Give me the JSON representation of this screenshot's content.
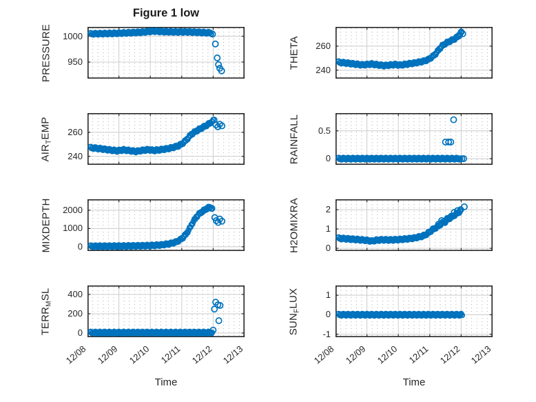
{
  "title": "Figure 1 low",
  "colors": {
    "marker": "#0072BD",
    "axis": "#262626",
    "grid_major": "#cccccc",
    "grid_minor": "#b3b3b3",
    "background": "#ffffff"
  },
  "x_axis": {
    "label": "Time",
    "tick_labels": [
      "12/08",
      "12/09",
      "12/10",
      "12/11",
      "12/12",
      "12/13"
    ],
    "lim_days": [
      0,
      5
    ]
  },
  "chart_data": [
    {
      "type": "scatter",
      "name": "PRESSURE",
      "ylabel_parts": [
        {
          "text": "PRESSURE"
        }
      ],
      "row": 0,
      "col": 0,
      "ylim": [
        918,
        1018
      ],
      "yticks": [
        {
          "v": 950,
          "label": "950"
        },
        {
          "v": 1000,
          "label": "1000"
        }
      ],
      "trend": [
        [
          0.1,
          1004.5
        ],
        [
          0.5,
          1005
        ],
        [
          0.9,
          1005.5
        ],
        [
          1.3,
          1006.5
        ],
        [
          1.7,
          1007.5
        ],
        [
          1.95,
          1009
        ],
        [
          2.15,
          1009.8
        ],
        [
          2.45,
          1008.6
        ],
        [
          2.8,
          1008.2
        ],
        [
          3.2,
          1008.2
        ],
        [
          3.6,
          1007.2
        ],
        [
          3.95,
          1006.2
        ]
      ],
      "points": [
        [
          3.98,
          1004
        ],
        [
          4.07,
          985
        ],
        [
          4.13,
          958
        ],
        [
          4.17,
          945
        ],
        [
          4.21,
          938
        ],
        [
          4.27,
          933
        ]
      ]
    },
    {
      "type": "scatter",
      "name": "THETA",
      "ylabel_parts": [
        {
          "text": "THETA"
        }
      ],
      "row": 0,
      "col": 1,
      "ylim": [
        233,
        276
      ],
      "yticks": [
        {
          "v": 240,
          "label": "240"
        },
        {
          "v": 260,
          "label": "260"
        }
      ],
      "trend": [
        [
          0.1,
          246.6
        ],
        [
          0.35,
          245.9
        ],
        [
          0.6,
          245.1
        ],
        [
          0.85,
          244.4
        ],
        [
          1.0,
          244.7
        ],
        [
          1.15,
          245.1
        ],
        [
          1.35,
          244.4
        ],
        [
          1.55,
          243.8
        ],
        [
          1.75,
          244.3
        ],
        [
          1.9,
          244.7
        ],
        [
          2.05,
          244.2
        ],
        [
          2.3,
          245.1
        ],
        [
          2.55,
          246.1
        ],
        [
          2.8,
          247.4
        ],
        [
          2.95,
          248.8
        ],
        [
          3.1,
          251.5
        ],
        [
          3.2,
          254
        ],
        [
          3.3,
          257.5
        ],
        [
          3.4,
          260.3
        ],
        [
          3.5,
          262.2
        ],
        [
          3.6,
          263.6
        ],
        [
          3.7,
          264.8
        ],
        [
          3.8,
          266.2
        ],
        [
          3.9,
          268
        ],
        [
          4.0,
          270.6
        ]
      ],
      "points": [
        [
          3.93,
          269
        ],
        [
          4.0,
          271.8
        ],
        [
          4.05,
          270.3
        ]
      ]
    },
    {
      "type": "scatter",
      "name": "AIR_TEMP",
      "ylabel_parts": [
        {
          "text": "AIR"
        },
        {
          "text": "T",
          "sub": true
        },
        {
          "text": "EMP"
        }
      ],
      "row": 1,
      "col": 0,
      "ylim": [
        233,
        276
      ],
      "yticks": [
        {
          "v": 240,
          "label": "240"
        },
        {
          "v": 260,
          "label": "260"
        }
      ],
      "trend": [
        [
          0.1,
          247.2
        ],
        [
          0.4,
          246.4
        ],
        [
          0.7,
          245.3
        ],
        [
          0.95,
          244.6
        ],
        [
          1.15,
          245.4
        ],
        [
          1.35,
          244.7
        ],
        [
          1.55,
          244.1
        ],
        [
          1.75,
          245
        ],
        [
          1.95,
          245.6
        ],
        [
          2.1,
          244.9
        ],
        [
          2.3,
          245.4
        ],
        [
          2.5,
          246.2
        ],
        [
          2.7,
          247.2
        ],
        [
          2.9,
          248.8
        ],
        [
          3.0,
          250.3
        ],
        [
          3.1,
          252.4
        ],
        [
          3.2,
          255.2
        ],
        [
          3.3,
          258.2
        ],
        [
          3.45,
          260.9
        ],
        [
          3.6,
          263.1
        ],
        [
          3.75,
          265.2
        ],
        [
          3.9,
          267.6
        ],
        [
          4.0,
          269.6
        ]
      ],
      "points": [
        [
          4.03,
          270.2
        ],
        [
          4.09,
          266.2
        ],
        [
          4.15,
          264.6
        ],
        [
          4.21,
          266.8
        ],
        [
          4.28,
          265.4
        ]
      ]
    },
    {
      "type": "scatter",
      "name": "RAINFALL",
      "ylabel_parts": [
        {
          "text": "RAINFALL"
        }
      ],
      "row": 1,
      "col": 1,
      "ylim": [
        -0.11,
        0.82
      ],
      "yticks": [
        {
          "v": 0,
          "label": "0"
        },
        {
          "v": 0.5,
          "label": "0.5"
        }
      ],
      "trend": [
        [
          0.1,
          0
        ],
        [
          3.98,
          0
        ]
      ],
      "points": [
        [
          3.5,
          0.3
        ],
        [
          3.6,
          0.3
        ],
        [
          3.67,
          0.3
        ],
        [
          3.76,
          0.7
        ],
        [
          4.02,
          0
        ],
        [
          4.08,
          0
        ]
      ]
    },
    {
      "type": "scatter",
      "name": "MIXDEPTH",
      "ylabel_parts": [
        {
          "text": "MIXDEPTH"
        }
      ],
      "row": 2,
      "col": 0,
      "ylim": [
        -230,
        2600
      ],
      "yticks": [
        {
          "v": 0,
          "label": "0"
        },
        {
          "v": 1000,
          "label": "1000"
        },
        {
          "v": 2000,
          "label": "2000"
        }
      ],
      "trend": [
        [
          0.1,
          25
        ],
        [
          0.6,
          30
        ],
        [
          1.1,
          38
        ],
        [
          1.6,
          48
        ],
        [
          2.0,
          65
        ],
        [
          2.35,
          100
        ],
        [
          2.6,
          160
        ],
        [
          2.8,
          250
        ],
        [
          2.95,
          380
        ],
        [
          3.05,
          520
        ],
        [
          3.15,
          720
        ],
        [
          3.25,
          1000
        ],
        [
          3.35,
          1330
        ],
        [
          3.45,
          1600
        ],
        [
          3.55,
          1790
        ],
        [
          3.65,
          1930
        ],
        [
          3.75,
          2040
        ],
        [
          3.85,
          2140
        ],
        [
          3.95,
          2130
        ]
      ],
      "points": [
        [
          3.6,
          1850
        ],
        [
          3.7,
          1980
        ],
        [
          3.8,
          2090
        ],
        [
          3.88,
          2160
        ],
        [
          3.96,
          2100
        ],
        [
          4.05,
          1600
        ],
        [
          4.1,
          1430
        ],
        [
          4.16,
          1330
        ],
        [
          4.21,
          1520
        ],
        [
          4.28,
          1400
        ]
      ]
    },
    {
      "type": "scatter",
      "name": "H2OMIXRA",
      "ylabel_parts": [
        {
          "text": "H2OMIXRA"
        }
      ],
      "row": 2,
      "col": 1,
      "ylim": [
        -0.14,
        2.54
      ],
      "yticks": [
        {
          "v": 0,
          "label": "0"
        },
        {
          "v": 1,
          "label": "1"
        },
        {
          "v": 2,
          "label": "2"
        }
      ],
      "trend": [
        [
          0.1,
          0.52
        ],
        [
          0.35,
          0.49
        ],
        [
          0.6,
          0.46
        ],
        [
          0.85,
          0.43
        ],
        [
          1.05,
          0.4
        ],
        [
          1.15,
          0.37
        ],
        [
          1.3,
          0.42
        ],
        [
          1.5,
          0.44
        ],
        [
          1.7,
          0.43
        ],
        [
          1.9,
          0.44
        ],
        [
          2.1,
          0.46
        ],
        [
          2.3,
          0.49
        ],
        [
          2.5,
          0.53
        ],
        [
          2.7,
          0.6
        ],
        [
          2.85,
          0.68
        ],
        [
          3.0,
          0.85
        ],
        [
          3.1,
          0.98
        ],
        [
          3.2,
          1.07
        ],
        [
          3.3,
          1.18
        ],
        [
          3.4,
          1.32
        ],
        [
          3.5,
          1.42
        ],
        [
          3.6,
          1.52
        ],
        [
          3.7,
          1.62
        ],
        [
          3.8,
          1.73
        ],
        [
          3.9,
          1.84
        ],
        [
          4.0,
          1.95
        ]
      ],
      "points": [
        [
          3.28,
          1.25
        ],
        [
          3.38,
          1.44
        ],
        [
          3.48,
          1.33
        ],
        [
          3.56,
          1.55
        ],
        [
          3.68,
          1.66
        ],
        [
          3.78,
          1.86
        ],
        [
          3.88,
          1.95
        ],
        [
          3.98,
          2.0
        ],
        [
          4.1,
          2.15
        ]
      ]
    },
    {
      "type": "scatter",
      "name": "TERR_MSL",
      "ylabel_parts": [
        {
          "text": "TERR"
        },
        {
          "text": "M",
          "sub": true
        },
        {
          "text": "SL"
        }
      ],
      "row": 3,
      "col": 0,
      "ylim": [
        -43,
        493
      ],
      "yticks": [
        {
          "v": 0,
          "label": "0"
        },
        {
          "v": 200,
          "label": "200"
        },
        {
          "v": 400,
          "label": "400"
        }
      ],
      "trend": [
        [
          0.1,
          4
        ],
        [
          3.97,
          4
        ]
      ],
      "points": [
        [
          4.0,
          30
        ],
        [
          4.04,
          248
        ],
        [
          4.08,
          320
        ],
        [
          4.15,
          292
        ],
        [
          4.18,
          128
        ],
        [
          4.22,
          286
        ]
      ]
    },
    {
      "type": "scatter",
      "name": "SUN_FLUX",
      "ylabel_parts": [
        {
          "text": "SUN"
        },
        {
          "text": "F",
          "sub": true
        },
        {
          "text": "LUX"
        }
      ],
      "row": 3,
      "col": 1,
      "ylim": [
        -1.15,
        1.5
      ],
      "yticks": [
        {
          "v": -1,
          "label": "-1"
        },
        {
          "v": 0,
          "label": "0"
        },
        {
          "v": 1,
          "label": "1"
        }
      ],
      "trend": [
        [
          0.1,
          0
        ],
        [
          4.05,
          0
        ]
      ],
      "points": []
    }
  ]
}
